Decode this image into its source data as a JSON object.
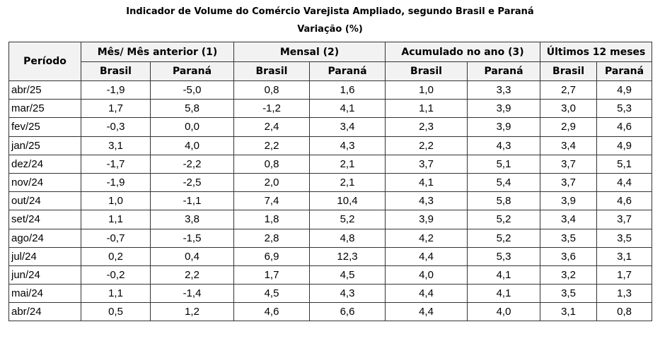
{
  "title_line1": "Indicador de Volume do Comércio Varejista Ampliado, segundo Brasil e Paraná",
  "title_line2": "Variação (%)",
  "header": {
    "period": "Período",
    "groups": [
      "Mês/ Mês anterior (1)",
      "Mensal (2)",
      "Acumulado no ano (3)",
      "Últimos 12 meses"
    ],
    "sub": [
      "Brasil",
      "Paraná",
      "Brasil",
      "Paraná",
      "Brasil",
      "Paraná",
      "Brasil",
      "Paraná"
    ]
  },
  "rows": [
    {
      "period": "abr/25",
      "values": [
        "-1,9",
        "-5,0",
        "0,8",
        "1,6",
        "1,0",
        "3,3",
        "2,7",
        "4,9"
      ]
    },
    {
      "period": "mar/25",
      "values": [
        "1,7",
        "5,8",
        "-1,2",
        "4,1",
        "1,1",
        "3,9",
        "3,0",
        "5,3"
      ]
    },
    {
      "period": "fev/25",
      "values": [
        "-0,3",
        "0,0",
        "2,4",
        "3,4",
        "2,3",
        "3,9",
        "2,9",
        "4,6"
      ]
    },
    {
      "period": "jan/25",
      "values": [
        "3,1",
        "4,0",
        "2,2",
        "4,3",
        "2,2",
        "4,3",
        "3,4",
        "4,9"
      ]
    },
    {
      "period": "dez/24",
      "values": [
        "-1,7",
        "-2,2",
        "0,8",
        "2,1",
        "3,7",
        "5,1",
        "3,7",
        "5,1"
      ]
    },
    {
      "period": "nov/24",
      "values": [
        "-1,9",
        "-2,5",
        "2,0",
        "2,1",
        "4,1",
        "5,4",
        "3,7",
        "4,4"
      ]
    },
    {
      "period": "out/24",
      "values": [
        "1,0",
        "-1,1",
        "7,4",
        "10,4",
        "4,3",
        "5,8",
        "3,9",
        "4,6"
      ]
    },
    {
      "period": "set/24",
      "values": [
        "1,1",
        "3,8",
        "1,8",
        "5,2",
        "3,9",
        "5,2",
        "3,4",
        "3,7"
      ]
    },
    {
      "period": "ago/24",
      "values": [
        "-0,7",
        "-1,5",
        "2,8",
        "4,8",
        "4,2",
        "5,2",
        "3,5",
        "3,5"
      ]
    },
    {
      "period": "jul/24",
      "values": [
        "0,2",
        "0,4",
        "6,9",
        "12,3",
        "4,4",
        "5,3",
        "3,6",
        "3,1"
      ]
    },
    {
      "period": "jun/24",
      "values": [
        "-0,2",
        "2,2",
        "1,7",
        "4,5",
        "4,0",
        "4,1",
        "3,2",
        "1,7"
      ]
    },
    {
      "period": "mai/24",
      "values": [
        "1,1",
        "-1,4",
        "4,5",
        "4,3",
        "4,4",
        "4,1",
        "3,5",
        "1,3"
      ]
    },
    {
      "period": "abr/24",
      "values": [
        "0,5",
        "1,2",
        "4,6",
        "6,6",
        "4,4",
        "4,0",
        "3,1",
        "0,8"
      ]
    }
  ]
}
